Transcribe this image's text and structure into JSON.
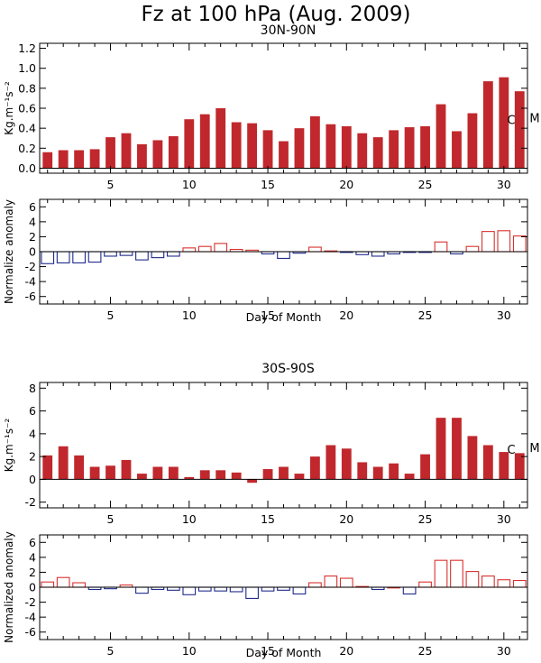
{
  "figure": {
    "title": "Fz at 100 hPa (Aug. 2009)",
    "colors": {
      "bar": "#c0282d",
      "positive": "#d8322e",
      "negative": "#1f2a8c",
      "axis": "#000000"
    }
  },
  "chart_data": [
    {
      "type": "bar",
      "title": "30N-90N",
      "ylabel": "Kg.m⁻¹s⁻²",
      "xlabel": "",
      "ylim": [
        -0.05,
        1.25
      ],
      "yticks": [
        0.0,
        0.2,
        0.4,
        0.6,
        0.8,
        1.0,
        1.2
      ],
      "ytick_labels": [
        "0.0",
        "0.2",
        "0.4",
        "0.6",
        "0.8",
        "1.0",
        "1.2"
      ],
      "xlim": [
        0.5,
        31.5
      ],
      "xticks": [
        5,
        10,
        15,
        20,
        25,
        30
      ],
      "xtick_labels": [
        "5",
        "10",
        "15",
        "20",
        "25",
        "30"
      ],
      "x": [
        1,
        2,
        3,
        4,
        5,
        6,
        7,
        8,
        9,
        10,
        11,
        12,
        13,
        14,
        15,
        16,
        17,
        18,
        19,
        20,
        21,
        22,
        23,
        24,
        25,
        26,
        27,
        28,
        29,
        30,
        31
      ],
      "values": [
        0.16,
        0.18,
        0.18,
        0.19,
        0.31,
        0.35,
        0.24,
        0.28,
        0.32,
        0.49,
        0.54,
        0.6,
        0.46,
        0.45,
        0.38,
        0.27,
        0.4,
        0.52,
        0.44,
        0.42,
        0.35,
        0.31,
        0.38,
        0.41,
        0.42,
        0.64,
        0.37,
        0.55,
        0.87,
        0.91,
        0.77
      ],
      "annotations": [
        "C",
        "M"
      ],
      "grid": false
    },
    {
      "type": "bar",
      "title": "",
      "ylabel": "Normalize anomaly",
      "xlabel": "Day of Month",
      "ylim": [
        -7,
        7
      ],
      "yticks": [
        -6,
        -4,
        -2,
        0,
        2,
        4,
        6
      ],
      "ytick_labels": [
        "-6",
        "-4",
        "-2",
        "0",
        "2",
        "4",
        "6"
      ],
      "xlim": [
        0.5,
        31.5
      ],
      "xticks": [
        5,
        10,
        15,
        20,
        25,
        30
      ],
      "xtick_labels": [
        "5",
        "10",
        "15",
        "20",
        "25",
        "30"
      ],
      "x": [
        1,
        2,
        3,
        4,
        5,
        6,
        7,
        8,
        9,
        10,
        11,
        12,
        13,
        14,
        15,
        16,
        17,
        18,
        19,
        20,
        21,
        22,
        23,
        24,
        25,
        26,
        27,
        28,
        29,
        30,
        31
      ],
      "values": [
        -1.6,
        -1.5,
        -1.5,
        -1.4,
        -0.6,
        -0.5,
        -1.1,
        -0.8,
        -0.6,
        0.5,
        0.7,
        1.1,
        0.3,
        0.2,
        -0.3,
        -0.9,
        -0.2,
        0.6,
        0.1,
        -0.1,
        -0.4,
        -0.6,
        -0.3,
        -0.1,
        -0.1,
        1.3,
        -0.3,
        0.7,
        2.7,
        2.8,
        2.1
      ],
      "grid": false
    },
    {
      "type": "bar",
      "title": "30S-90S",
      "ylabel": "Kg.m⁻¹s⁻²",
      "xlabel": "",
      "ylim": [
        -2.5,
        8.5
      ],
      "yticks": [
        -2,
        0,
        2,
        4,
        6,
        8
      ],
      "ytick_labels": [
        "-2",
        "0",
        "2",
        "4",
        "6",
        "8"
      ],
      "xlim": [
        0.5,
        31.5
      ],
      "xticks": [
        5,
        10,
        15,
        20,
        25,
        30
      ],
      "xtick_labels": [
        "5",
        "10",
        "15",
        "20",
        "25",
        "30"
      ],
      "x": [
        1,
        2,
        3,
        4,
        5,
        6,
        7,
        8,
        9,
        10,
        11,
        12,
        13,
        14,
        15,
        16,
        17,
        18,
        19,
        20,
        21,
        22,
        23,
        24,
        25,
        26,
        27,
        28,
        29,
        30,
        31
      ],
      "values": [
        2.1,
        2.9,
        2.1,
        1.1,
        1.2,
        1.7,
        0.5,
        1.1,
        1.1,
        0.2,
        0.8,
        0.8,
        0.6,
        -0.3,
        0.9,
        1.1,
        0.5,
        2.0,
        3.0,
        2.7,
        1.5,
        1.1,
        1.4,
        0.5,
        2.2,
        5.4,
        5.4,
        3.8,
        3.0,
        2.4,
        2.3
      ],
      "annotations": [
        "C",
        "M"
      ],
      "grid": false
    },
    {
      "type": "bar",
      "title": "",
      "ylabel": "Normalized anomaly",
      "xlabel": "Day of Month",
      "ylim": [
        -7,
        7
      ],
      "yticks": [
        -6,
        -4,
        -2,
        0,
        2,
        4,
        6
      ],
      "ytick_labels": [
        "-6",
        "-4",
        "-2",
        "0",
        "2",
        "4",
        "6"
      ],
      "xlim": [
        0.5,
        31.5
      ],
      "xticks": [
        5,
        10,
        15,
        20,
        25,
        30
      ],
      "xtick_labels": [
        "5",
        "10",
        "15",
        "20",
        "25",
        "30"
      ],
      "x": [
        1,
        2,
        3,
        4,
        5,
        6,
        7,
        8,
        9,
        10,
        11,
        12,
        13,
        14,
        15,
        16,
        17,
        18,
        19,
        20,
        21,
        22,
        23,
        24,
        25,
        26,
        27,
        28,
        29,
        30,
        31
      ],
      "values": [
        0.7,
        1.3,
        0.6,
        -0.3,
        -0.2,
        0.3,
        -0.8,
        -0.3,
        -0.4,
        -1.0,
        -0.5,
        -0.5,
        -0.6,
        -1.5,
        -0.5,
        -0.4,
        -0.9,
        0.6,
        1.5,
        1.2,
        0.1,
        -0.3,
        0.0,
        -0.9,
        0.7,
        3.6,
        3.6,
        2.1,
        1.5,
        1.0,
        0.9
      ],
      "grid": false
    }
  ]
}
